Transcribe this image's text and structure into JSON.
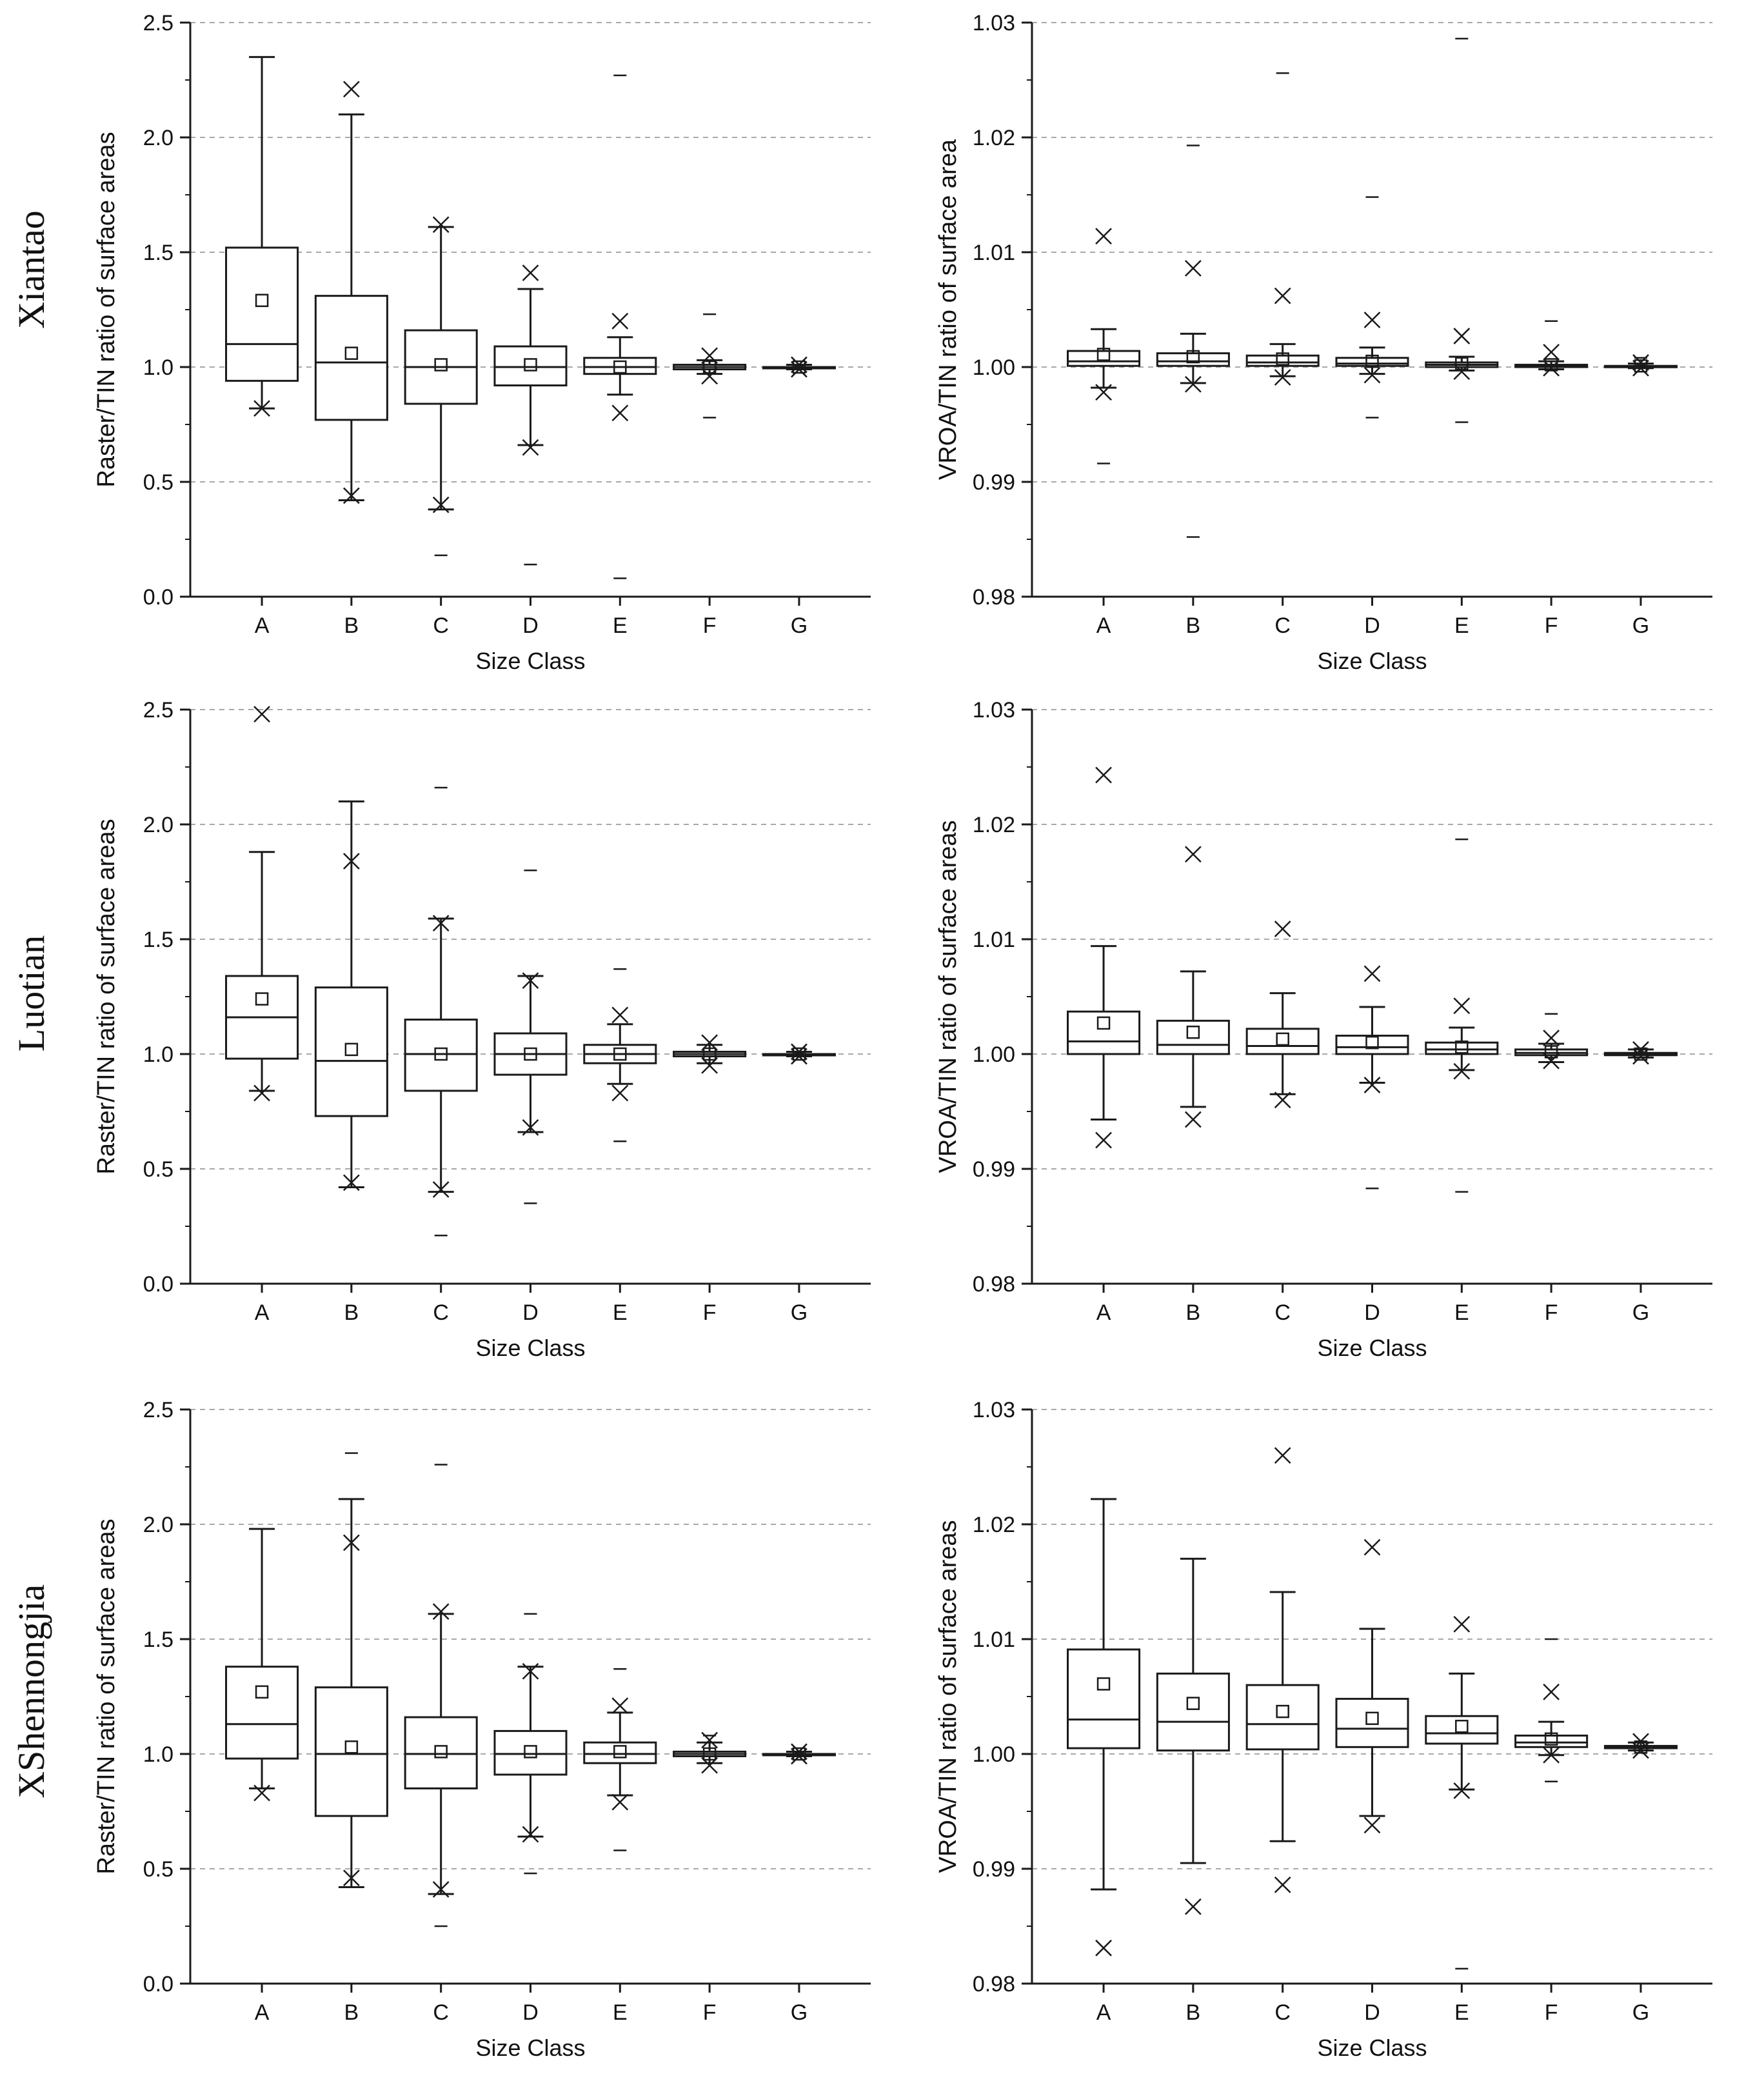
{
  "chart_data": [
    {
      "type": "box",
      "row_label": "Xiantao",
      "title": "",
      "xlabel": "Size Class",
      "ylabel": "Raster/TIN ratio of surface areas",
      "ylim": [
        0,
        2.5
      ],
      "yticks": [
        0.0,
        0.5,
        1.0,
        1.5,
        2.0,
        2.5
      ],
      "ytick_labels": [
        "0.0",
        "0.5",
        "1.0",
        "1.5",
        "2.0",
        "2.5"
      ],
      "grid": true,
      "categories": [
        "A",
        "B",
        "C",
        "D",
        "E",
        "F",
        "G"
      ],
      "boxes": [
        {
          "q1": 0.94,
          "median": 1.1,
          "q3": 1.52,
          "mean": 1.29,
          "wlo": 0.82,
          "whi": 2.35,
          "x_hi": null,
          "x_lo": 0.82,
          "dash_hi": null,
          "dash_lo": null
        },
        {
          "q1": 0.77,
          "median": 1.02,
          "q3": 1.31,
          "mean": 1.06,
          "wlo": 0.42,
          "whi": 2.1,
          "x_hi": 2.21,
          "x_lo": 0.44,
          "dash_hi": null,
          "dash_lo": null
        },
        {
          "q1": 0.84,
          "median": 1.0,
          "q3": 1.16,
          "mean": 1.01,
          "wlo": 0.38,
          "whi": 1.61,
          "x_hi": 1.62,
          "x_lo": 0.4,
          "dash_hi": null,
          "dash_lo": 0.18
        },
        {
          "q1": 0.92,
          "median": 1.0,
          "q3": 1.09,
          "mean": 1.01,
          "wlo": 0.66,
          "whi": 1.34,
          "x_hi": 1.41,
          "x_lo": 0.65,
          "dash_hi": null,
          "dash_lo": 0.14
        },
        {
          "q1": 0.97,
          "median": 1.0,
          "q3": 1.04,
          "mean": 1.0,
          "wlo": 0.88,
          "whi": 1.13,
          "x_hi": 1.2,
          "x_lo": 0.8,
          "dash_hi": 2.27,
          "dash_lo": 0.08
        },
        {
          "q1": 0.99,
          "median": 1.0,
          "q3": 1.01,
          "mean": 1.0,
          "wlo": 0.97,
          "whi": 1.03,
          "x_hi": 1.05,
          "x_lo": 0.96,
          "dash_hi": 1.23,
          "dash_lo": 0.78
        },
        {
          "q1": 1.0,
          "median": 1.0,
          "q3": 1.0,
          "mean": 1.0,
          "wlo": 0.99,
          "whi": 1.01,
          "x_hi": 1.01,
          "x_lo": 0.99,
          "dash_hi": null,
          "dash_lo": null
        }
      ]
    },
    {
      "type": "box",
      "row_label": "Xiantao",
      "title": "",
      "xlabel": "Size Class",
      "ylabel": "VROA/TIN ratio of surface area",
      "ylim": [
        0.98,
        1.03
      ],
      "yticks": [
        0.98,
        0.99,
        1.0,
        1.01,
        1.02,
        1.03
      ],
      "ytick_labels": [
        "0.98",
        "0.99",
        "1.00",
        "1.01",
        "1.02",
        "1.03"
      ],
      "grid": true,
      "categories": [
        "A",
        "B",
        "C",
        "D",
        "E",
        "F",
        "G"
      ],
      "boxes": [
        {
          "q1": 1.0001,
          "median": 1.0005,
          "q3": 1.0014,
          "mean": 1.0011,
          "wlo": 0.9982,
          "whi": 1.0033,
          "x_hi": 1.0114,
          "x_lo": 0.9978,
          "dash_hi": null,
          "dash_lo": 0.9916
        },
        {
          "q1": 1.0001,
          "median": 1.0005,
          "q3": 1.0012,
          "mean": 1.0009,
          "wlo": 0.9986,
          "whi": 1.0029,
          "x_hi": 1.0086,
          "x_lo": 0.9985,
          "dash_hi": 1.0193,
          "dash_lo": 0.9852
        },
        {
          "q1": 1.0001,
          "median": 1.0004,
          "q3": 1.001,
          "mean": 1.0007,
          "wlo": 0.9992,
          "whi": 1.002,
          "x_hi": 1.0062,
          "x_lo": 0.9991,
          "dash_hi": 1.0256,
          "dash_lo": null
        },
        {
          "q1": 1.0001,
          "median": 1.0003,
          "q3": 1.0008,
          "mean": 1.0005,
          "wlo": 0.9994,
          "whi": 1.0017,
          "x_hi": 1.0041,
          "x_lo": 0.9993,
          "dash_hi": 1.0148,
          "dash_lo": 0.9956
        },
        {
          "q1": 1.0,
          "median": 1.0002,
          "q3": 1.0004,
          "mean": 1.0003,
          "wlo": 0.9997,
          "whi": 1.0009,
          "x_hi": 1.0027,
          "x_lo": 0.9996,
          "dash_hi": 1.0286,
          "dash_lo": 0.9952
        },
        {
          "q1": 1.0,
          "median": 1.0001,
          "q3": 1.0002,
          "mean": 1.0002,
          "wlo": 0.9998,
          "whi": 1.0005,
          "x_hi": 1.0013,
          "x_lo": 0.9999,
          "dash_hi": 1.004,
          "dash_lo": null
        },
        {
          "q1": 1.0,
          "median": 1.0,
          "q3": 1.0001,
          "mean": 1.0001,
          "wlo": 0.9999,
          "whi": 1.0003,
          "x_hi": 1.0004,
          "x_lo": 0.9999,
          "dash_hi": 1.0008,
          "dash_lo": null
        }
      ]
    },
    {
      "type": "box",
      "row_label": "Luotian",
      "title": "",
      "xlabel": "Size Class",
      "ylabel": "Raster/TIN ratio of surface areas",
      "ylim": [
        0,
        2.5
      ],
      "yticks": [
        0.0,
        0.5,
        1.0,
        1.5,
        2.0,
        2.5
      ],
      "ytick_labels": [
        "0.0",
        "0.5",
        "1.0",
        "1.5",
        "2.0",
        "2.5"
      ],
      "grid": true,
      "categories": [
        "A",
        "B",
        "C",
        "D",
        "E",
        "F",
        "G"
      ],
      "boxes": [
        {
          "q1": 0.98,
          "median": 1.16,
          "q3": 1.34,
          "mean": 1.24,
          "wlo": 0.84,
          "whi": 1.88,
          "x_hi": 2.48,
          "x_lo": 0.83,
          "dash_hi": null,
          "dash_lo": null
        },
        {
          "q1": 0.73,
          "median": 0.97,
          "q3": 1.29,
          "mean": 1.02,
          "wlo": 0.42,
          "whi": 2.1,
          "x_hi": 1.84,
          "x_lo": 0.44,
          "dash_hi": null,
          "dash_lo": null
        },
        {
          "q1": 0.84,
          "median": 1.0,
          "q3": 1.15,
          "mean": 1.0,
          "wlo": 0.4,
          "whi": 1.59,
          "x_hi": 1.57,
          "x_lo": 0.41,
          "dash_hi": 2.16,
          "dash_lo": 0.21
        },
        {
          "q1": 0.91,
          "median": 1.0,
          "q3": 1.09,
          "mean": 1.0,
          "wlo": 0.66,
          "whi": 1.34,
          "x_hi": 1.32,
          "x_lo": 0.68,
          "dash_hi": 1.8,
          "dash_lo": 0.35
        },
        {
          "q1": 0.96,
          "median": 1.0,
          "q3": 1.04,
          "mean": 1.0,
          "wlo": 0.87,
          "whi": 1.13,
          "x_hi": 1.17,
          "x_lo": 0.83,
          "dash_hi": 1.37,
          "dash_lo": 0.62
        },
        {
          "q1": 0.99,
          "median": 1.0,
          "q3": 1.01,
          "mean": 1.0,
          "wlo": 0.96,
          "whi": 1.04,
          "x_hi": 1.05,
          "x_lo": 0.95,
          "dash_hi": null,
          "dash_lo": null
        },
        {
          "q1": 1.0,
          "median": 1.0,
          "q3": 1.0,
          "mean": 1.0,
          "wlo": 0.99,
          "whi": 1.01,
          "x_hi": 1.01,
          "x_lo": 0.99,
          "dash_hi": null,
          "dash_lo": null
        }
      ]
    },
    {
      "type": "box",
      "row_label": "Luotian",
      "title": "",
      "xlabel": "Size Class",
      "ylabel": "VROA/TIN ratio of surface areas",
      "ylim": [
        0.98,
        1.03
      ],
      "yticks": [
        0.98,
        0.99,
        1.0,
        1.01,
        1.02,
        1.03
      ],
      "ytick_labels": [
        "0.98",
        "0.99",
        "1.00",
        "1.01",
        "1.02",
        "1.03"
      ],
      "grid": true,
      "categories": [
        "A",
        "B",
        "C",
        "D",
        "E",
        "F",
        "G"
      ],
      "boxes": [
        {
          "q1": 1.0,
          "median": 1.0011,
          "q3": 1.0037,
          "mean": 1.0027,
          "wlo": 0.9943,
          "whi": 1.0094,
          "x_hi": 1.0243,
          "x_lo": 0.9925,
          "dash_hi": null,
          "dash_lo": null
        },
        {
          "q1": 1.0,
          "median": 1.0008,
          "q3": 1.0029,
          "mean": 1.0019,
          "wlo": 0.9954,
          "whi": 1.0072,
          "x_hi": 1.0174,
          "x_lo": 0.9943,
          "dash_hi": null,
          "dash_lo": null
        },
        {
          "q1": 1.0,
          "median": 1.0007,
          "q3": 1.0022,
          "mean": 1.0013,
          "wlo": 0.9965,
          "whi": 1.0053,
          "x_hi": 1.0109,
          "x_lo": 0.996,
          "dash_hi": null,
          "dash_lo": null
        },
        {
          "q1": 1.0,
          "median": 1.0006,
          "q3": 1.0016,
          "mean": 1.001,
          "wlo": 0.9975,
          "whi": 1.0041,
          "x_hi": 1.007,
          "x_lo": 0.9973,
          "dash_hi": null,
          "dash_lo": 0.9883
        },
        {
          "q1": 1.0,
          "median": 1.0004,
          "q3": 1.001,
          "mean": 1.0006,
          "wlo": 0.9986,
          "whi": 1.0023,
          "x_hi": 1.0042,
          "x_lo": 0.9985,
          "dash_hi": 1.0187,
          "dash_lo": 0.988
        },
        {
          "q1": 0.9999,
          "median": 1.0001,
          "q3": 1.0004,
          "mean": 1.0002,
          "wlo": 0.9993,
          "whi": 1.0009,
          "x_hi": 1.0014,
          "x_lo": 0.9994,
          "dash_hi": 1.0035,
          "dash_lo": null
        },
        {
          "q1": 0.9999,
          "median": 1.0,
          "q3": 1.0001,
          "mean": 1.0,
          "wlo": 0.9997,
          "whi": 1.0004,
          "x_hi": 1.0004,
          "x_lo": 0.9998,
          "dash_hi": null,
          "dash_lo": null
        }
      ]
    },
    {
      "type": "box",
      "row_label": "XShennongjia",
      "title": "",
      "xlabel": "Size Class",
      "ylabel": "Raster/TIN ratio of surface areas",
      "ylim": [
        0,
        2.5
      ],
      "yticks": [
        0.0,
        0.5,
        1.0,
        1.5,
        2.0,
        2.5
      ],
      "ytick_labels": [
        "0.0",
        "0.5",
        "1.0",
        "1.5",
        "2.0",
        "2.5"
      ],
      "grid": true,
      "categories": [
        "A",
        "B",
        "C",
        "D",
        "E",
        "F",
        "G"
      ],
      "boxes": [
        {
          "q1": 0.98,
          "median": 1.13,
          "q3": 1.38,
          "mean": 1.27,
          "wlo": 0.85,
          "whi": 1.98,
          "x_hi": null,
          "x_lo": 0.83,
          "dash_hi": null,
          "dash_lo": null
        },
        {
          "q1": 0.73,
          "median": 1.0,
          "q3": 1.29,
          "mean": 1.03,
          "wlo": 0.42,
          "whi": 2.11,
          "x_hi": 1.92,
          "x_lo": 0.46,
          "dash_hi": 2.31,
          "dash_lo": null
        },
        {
          "q1": 0.85,
          "median": 1.0,
          "q3": 1.16,
          "mean": 1.01,
          "wlo": 0.39,
          "whi": 1.61,
          "x_hi": 1.62,
          "x_lo": 0.41,
          "dash_hi": 2.26,
          "dash_lo": 0.25
        },
        {
          "q1": 0.91,
          "median": 1.0,
          "q3": 1.1,
          "mean": 1.01,
          "wlo": 0.64,
          "whi": 1.38,
          "x_hi": 1.36,
          "x_lo": 0.65,
          "dash_hi": 1.61,
          "dash_lo": 0.48
        },
        {
          "q1": 0.96,
          "median": 1.0,
          "q3": 1.05,
          "mean": 1.01,
          "wlo": 0.82,
          "whi": 1.18,
          "x_hi": 1.21,
          "x_lo": 0.79,
          "dash_hi": 1.37,
          "dash_lo": 0.58
        },
        {
          "q1": 0.99,
          "median": 1.0,
          "q3": 1.01,
          "mean": 1.0,
          "wlo": 0.96,
          "whi": 1.05,
          "x_hi": 1.06,
          "x_lo": 0.95,
          "dash_hi": 1.08,
          "dash_lo": null
        },
        {
          "q1": 1.0,
          "median": 1.0,
          "q3": 1.0,
          "mean": 1.0,
          "wlo": 0.99,
          "whi": 1.01,
          "x_hi": 1.01,
          "x_lo": 0.99,
          "dash_hi": null,
          "dash_lo": null
        }
      ]
    },
    {
      "type": "box",
      "row_label": "XShennongjia",
      "title": "",
      "xlabel": "Size Class",
      "ylabel": "VROA/TIN ratio of surface areas",
      "ylim": [
        0.98,
        1.03
      ],
      "yticks": [
        0.98,
        0.99,
        1.0,
        1.01,
        1.02,
        1.03
      ],
      "ytick_labels": [
        "0.98",
        "0.99",
        "1.00",
        "1.01",
        "1.02",
        "1.03"
      ],
      "grid": true,
      "categories": [
        "A",
        "B",
        "C",
        "D",
        "E",
        "F",
        "G"
      ],
      "boxes": [
        {
          "q1": 1.0005,
          "median": 1.003,
          "q3": 1.0091,
          "mean": 1.0061,
          "wlo": 0.9882,
          "whi": 1.0222,
          "x_hi": null,
          "x_lo": 0.9831,
          "dash_hi": null,
          "dash_lo": null
        },
        {
          "q1": 1.0003,
          "median": 1.0028,
          "q3": 1.007,
          "mean": 1.0044,
          "wlo": 0.9905,
          "whi": 1.017,
          "x_hi": null,
          "x_lo": 0.9867,
          "dash_hi": null,
          "dash_lo": null
        },
        {
          "q1": 1.0004,
          "median": 1.0026,
          "q3": 1.006,
          "mean": 1.0037,
          "wlo": 0.9924,
          "whi": 1.0141,
          "x_hi": 1.026,
          "x_lo": 0.9886,
          "dash_hi": null,
          "dash_lo": null
        },
        {
          "q1": 1.0006,
          "median": 1.0022,
          "q3": 1.0048,
          "mean": 1.0031,
          "wlo": 0.9946,
          "whi": 1.0109,
          "x_hi": 1.018,
          "x_lo": 0.9938,
          "dash_hi": null,
          "dash_lo": null
        },
        {
          "q1": 1.0009,
          "median": 1.0018,
          "q3": 1.0033,
          "mean": 1.0024,
          "wlo": 0.9969,
          "whi": 1.007,
          "x_hi": 1.0113,
          "x_lo": 0.9968,
          "dash_hi": null,
          "dash_lo": 0.9813
        },
        {
          "q1": 1.0006,
          "median": 1.001,
          "q3": 1.0016,
          "mean": 1.0013,
          "wlo": 0.9999,
          "whi": 1.0028,
          "x_hi": 1.0054,
          "x_lo": 0.9999,
          "dash_hi": 1.01,
          "dash_lo": 0.9976
        },
        {
          "q1": 1.0005,
          "median": 1.0006,
          "q3": 1.0007,
          "mean": 1.0006,
          "wlo": 1.0003,
          "whi": 1.001,
          "x_hi": 1.0011,
          "x_lo": 1.0003,
          "dash_hi": null,
          "dash_lo": null
        }
      ]
    }
  ],
  "row_labels": [
    "Xiantao",
    "Luotian",
    "XShennongjia"
  ]
}
